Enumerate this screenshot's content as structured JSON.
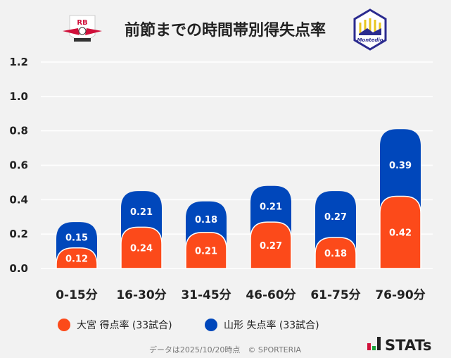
{
  "chart_data": {
    "type": "bar",
    "stacked": true,
    "title": "前節までの時間帯別得失点率",
    "categories": [
      "0-15分",
      "16-30分",
      "31-45分",
      "46-60分",
      "61-75分",
      "76-90分"
    ],
    "series": [
      {
        "name": "大宮 得点率 (33試合)",
        "color": "#fc4a1a",
        "values": [
          0.12,
          0.24,
          0.21,
          0.27,
          0.18,
          0.42
        ]
      },
      {
        "name": "山形 失点率 (33試合)",
        "color": "#0047bb",
        "values": [
          0.15,
          0.21,
          0.18,
          0.21,
          0.27,
          0.39
        ]
      }
    ],
    "ylim": [
      0,
      1.2
    ],
    "yticks": [
      "0.0",
      "0.2",
      "0.4",
      "0.6",
      "0.8",
      "1.0",
      "1.2"
    ],
    "grid": true,
    "legend": "bottom"
  },
  "logos": {
    "home": "RB",
    "away": "Montedio YAMAGATA"
  },
  "footer": {
    "note": "データは2025/10/20時点　© SPORTERIA",
    "brand": "STATs"
  }
}
